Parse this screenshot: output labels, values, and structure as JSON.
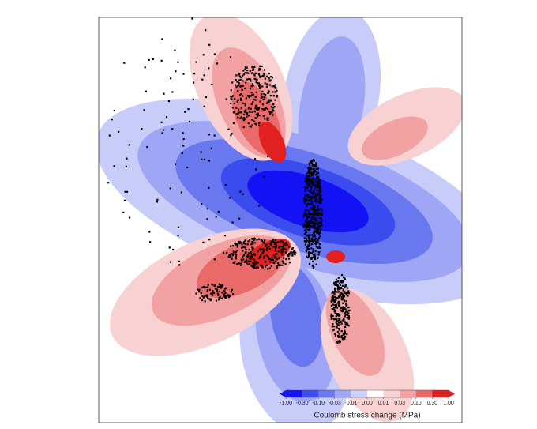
{
  "colorbar": {
    "label": "Coulomb stress change (MPa)",
    "ticks": [
      "-1.00",
      "-0.30",
      "-0.10",
      "-0.03",
      "-0.01",
      "0.00",
      "0.01",
      "0.03",
      "0.10",
      "0.30",
      "1.00"
    ],
    "colors": [
      "#1212f5",
      "#3a4cee",
      "#6a78f0",
      "#9ea6f5",
      "#cdd0f9",
      "#ffffff",
      "#f8d2d2",
      "#f2a2a2",
      "#ea6a6a",
      "#e22020"
    ]
  }
}
